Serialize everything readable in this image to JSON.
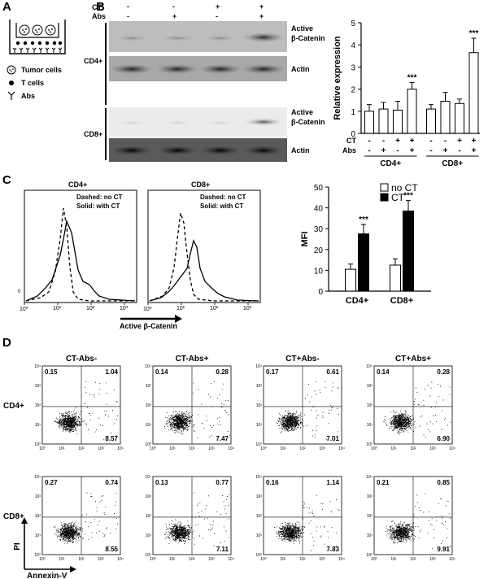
{
  "panels": {
    "A": "A",
    "B": "B",
    "C": "C",
    "D": "D"
  },
  "panel_a": {
    "legend": [
      "Tumor cells",
      "T cells",
      "Abs"
    ]
  },
  "panel_b": {
    "row_labels": [
      "CT",
      "Abs"
    ],
    "ct_signs": [
      "-",
      "-",
      "+",
      "+"
    ],
    "abs_signs": [
      "-",
      "+",
      "-",
      "+"
    ],
    "group_cd4": "CD4+",
    "group_cd8": "CD8+",
    "band_active": [
      "Active",
      "β-Catenin"
    ],
    "band_actin": "Actin"
  },
  "panel_c": {
    "hist_titles": [
      "CD4+",
      "CD8+"
    ],
    "hist_legend": [
      "Dashed: no CT",
      "Solid: with CT"
    ],
    "x_ticks": [
      "10⁰",
      "10¹",
      "10²",
      "10³"
    ],
    "x_label": "Active β-Catenin",
    "y_zero": "0"
  },
  "panel_d": {
    "col_titles": [
      "CT-Abs-",
      "CT-Abs+",
      "CT+Abs-",
      "CT+Abs+"
    ],
    "row_titles": [
      "CD4+",
      "CD8+"
    ],
    "quadrants": [
      [
        [
          "0.15",
          "1.04",
          "8.57"
        ],
        [
          "0.14",
          "0.28",
          "7.47"
        ],
        [
          "0.17",
          "0.61",
          "7.01"
        ],
        [
          "0.14",
          "0.28",
          "6.90"
        ]
      ],
      [
        [
          "0.27",
          "0.74",
          "8.55"
        ],
        [
          "0.13",
          "0.77",
          "7.11"
        ],
        [
          "0.16",
          "1.14",
          "7.83"
        ],
        [
          "0.21",
          "0.85",
          "9.91"
        ]
      ]
    ],
    "y_axis": "PI",
    "x_axis": "Annexin-V"
  },
  "chart_data": [
    {
      "type": "bar",
      "ylabel": "Relative expression",
      "ylim": [
        0,
        5
      ],
      "yticks": [
        0,
        1,
        2,
        3,
        4,
        5
      ],
      "rows": {
        "CT": [
          "-",
          "-",
          "+",
          "+",
          "-",
          "-",
          "+",
          "+"
        ],
        "Abs": [
          "-",
          "+",
          "-",
          "+",
          "-",
          "+",
          "-",
          "+"
        ]
      },
      "groups": [
        "CD4+",
        "CD8+"
      ],
      "values": [
        1.0,
        1.1,
        1.05,
        2.0,
        1.1,
        1.45,
        1.35,
        3.65
      ],
      "errors": [
        0.3,
        0.3,
        0.4,
        0.3,
        0.2,
        0.4,
        0.2,
        0.65
      ],
      "significance": [
        "",
        "",
        "",
        "***",
        "",
        "",
        "",
        "***"
      ]
    },
    {
      "type": "bar",
      "ylabel": "MFI",
      "ylim": [
        0,
        50
      ],
      "yticks": [
        0,
        10,
        20,
        30,
        40,
        50
      ],
      "categories": [
        "CD4+",
        "CD8+"
      ],
      "series": [
        {
          "name": "no CT",
          "values": [
            10.5,
            12.5
          ],
          "errors": [
            2.5,
            3.0
          ]
        },
        {
          "name": "CT",
          "values": [
            27.5,
            38.5
          ],
          "errors": [
            4.5,
            5.0
          ]
        }
      ],
      "significance": [
        "***",
        "***"
      ],
      "legend": "top-right",
      "colors": {
        "no CT": "#ffffff",
        "CT": "#000000"
      }
    }
  ]
}
